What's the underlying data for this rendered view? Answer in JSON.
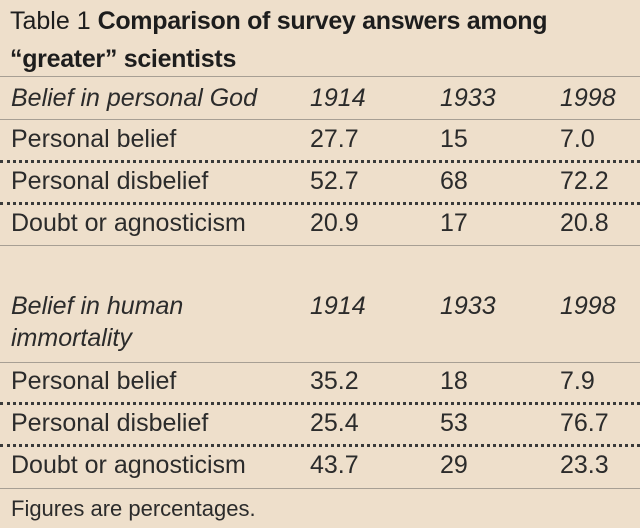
{
  "title": {
    "number": "Table 1",
    "text_line1": "Comparison of survey answers among",
    "text_line2": "“greater” scientists"
  },
  "sections": [
    {
      "heading": "Belief in personal God",
      "years": [
        "1914",
        "1933",
        "1998"
      ],
      "rows": [
        {
          "label": "Personal belief",
          "values": [
            "27.7",
            "15",
            "7.0"
          ]
        },
        {
          "label": "Personal disbelief",
          "values": [
            "52.7",
            "68",
            "72.2"
          ]
        },
        {
          "label": "Doubt or agnosticism",
          "values": [
            "20.9",
            "17",
            "20.8"
          ]
        }
      ]
    },
    {
      "heading_line1": "Belief in human",
      "heading_line2": "immortality",
      "years": [
        "1914",
        "1933",
        "1998"
      ],
      "rows": [
        {
          "label": "Personal belief",
          "values": [
            "35.2",
            "18",
            "7.9"
          ]
        },
        {
          "label": "Personal disbelief",
          "values": [
            "25.4",
            "53",
            "76.7"
          ]
        },
        {
          "label": "Doubt or agnosticism",
          "values": [
            "43.7",
            "29",
            "23.3"
          ]
        }
      ]
    }
  ],
  "footnote": "Figures are percentages."
}
